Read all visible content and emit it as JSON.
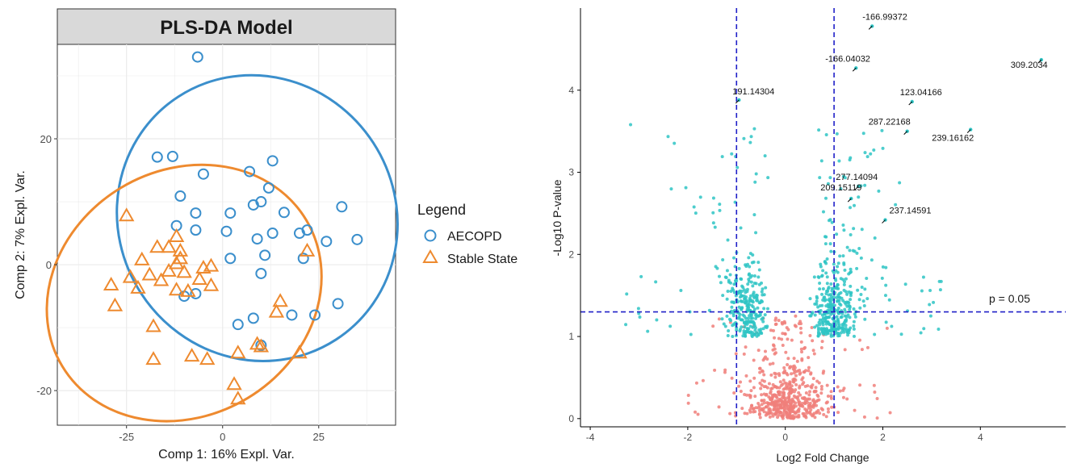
{
  "colors": {
    "aecopd": "#3b8fcc",
    "stable": "#ee8a2f",
    "panel_bg": "#ffffff",
    "grid": "#ebebeb",
    "strip_bg": "#d9d9d9",
    "sig": "#2ec4c4",
    "nonsig": "#f07f7a",
    "cutoff": "#2020c8",
    "text": "#1a1a1a",
    "axis_text": "#4d4d4d"
  },
  "chart_data": [
    {
      "type": "scatter",
      "title": "PLS-DA Model",
      "xlabel": "Comp 1: 16% Expl. Var.",
      "ylabel": "Comp 2: 7% Expl. Var.",
      "xlim": [
        -43,
        45
      ],
      "ylim": [
        -25.5,
        35
      ],
      "xticks": [
        -25,
        0,
        25
      ],
      "yticks": [
        -20,
        0,
        20
      ],
      "grid": true,
      "legend": {
        "title": "Legend",
        "position": "right",
        "entries": [
          "AECOPD",
          "Stable State"
        ]
      },
      "series": [
        {
          "name": "AECOPD",
          "marker": "circle",
          "color": "#3b8fcc",
          "points": [
            [
              -6.5,
              33
            ],
            [
              -17,
              17.1
            ],
            [
              -13,
              17.2
            ],
            [
              -5,
              14.4
            ],
            [
              7,
              14.8
            ],
            [
              13,
              16.5
            ],
            [
              -11,
              10.9
            ],
            [
              8,
              9.5
            ],
            [
              10,
              10
            ],
            [
              12,
              12.2
            ],
            [
              16,
              8.3
            ],
            [
              31,
              9.2
            ],
            [
              -7,
              8.2
            ],
            [
              2,
              8.2
            ],
            [
              -12,
              6.2
            ],
            [
              -7,
              5.5
            ],
            [
              1,
              5.3
            ],
            [
              9,
              4.1
            ],
            [
              13,
              5
            ],
            [
              20,
              5
            ],
            [
              22,
              5.5
            ],
            [
              27,
              3.7
            ],
            [
              35,
              4
            ],
            [
              11,
              1.5
            ],
            [
              21,
              1
            ],
            [
              2,
              1
            ],
            [
              10,
              -1.4
            ],
            [
              30,
              -6.2
            ],
            [
              -10,
              -5
            ],
            [
              -7,
              -4.6
            ],
            [
              8,
              -8.5
            ],
            [
              18,
              -8
            ],
            [
              24,
              -8
            ],
            [
              4,
              -9.5
            ],
            [
              10,
              -12.8
            ]
          ]
        },
        {
          "name": "Stable State",
          "marker": "triangle",
          "color": "#ee8a2f",
          "points": [
            [
              -25,
              7.8
            ],
            [
              -12,
              4.5
            ],
            [
              -17,
              2.8
            ],
            [
              -14,
              2.8
            ],
            [
              -11,
              2.2
            ],
            [
              -21,
              0.8
            ],
            [
              -11,
              1
            ],
            [
              -12,
              0.2
            ],
            [
              -10,
              -1.2
            ],
            [
              -14,
              -1
            ],
            [
              -5,
              -0.5
            ],
            [
              -3,
              -0.2
            ],
            [
              -24,
              -2
            ],
            [
              -19,
              -1.6
            ],
            [
              -16,
              -2.5
            ],
            [
              -12,
              -4
            ],
            [
              -6,
              -2.3
            ],
            [
              -3,
              -3.3
            ],
            [
              -29,
              -3.2
            ],
            [
              -22,
              -3.7
            ],
            [
              -9,
              -4.2
            ],
            [
              -28,
              -6.5
            ],
            [
              15,
              -5.8
            ],
            [
              14,
              -7.5
            ],
            [
              -18,
              -9.8
            ],
            [
              9,
              -12.6
            ],
            [
              10,
              -13
            ],
            [
              -18,
              -15
            ],
            [
              -8,
              -14.5
            ],
            [
              -4,
              -15
            ],
            [
              20,
              -14
            ],
            [
              4,
              -14
            ],
            [
              3,
              -19
            ],
            [
              22,
              2.2
            ],
            [
              4,
              -21.3
            ]
          ]
        }
      ],
      "ellipses": [
        {
          "series": "AECOPD",
          "center": [
            9,
            7.4
          ],
          "radii": [
            36,
            23
          ],
          "rotation_deg": -33
        },
        {
          "series": "Stable State",
          "center": [
            -10,
            -4.5
          ],
          "radii": [
            37,
            19.5
          ],
          "rotation_deg": -31
        }
      ]
    },
    {
      "type": "scatter",
      "title": "",
      "xlabel": "Log2 Fold Change",
      "ylabel": "-Log10 P-value",
      "xlim": [
        -4.2,
        5.75
      ],
      "ylim": [
        -0.1,
        5.0
      ],
      "xticks": [
        -4,
        -2,
        0,
        2,
        4
      ],
      "yticks": [
        0,
        1,
        2,
        3,
        4
      ],
      "grid": false,
      "cutoffs": {
        "x": [
          -1,
          1
        ],
        "y": 1.3
      },
      "threshold_label": "p = 0.05",
      "point_groups": [
        {
          "group": "significant",
          "color": "#2ec4c4",
          "count": 700,
          "p_min": 1.3
        },
        {
          "group": "not significant",
          "color": "#f07f7a",
          "count": 550,
          "p_max": 1.3
        }
      ],
      "labeled_points": [
        {
          "label": "-166.99372",
          "x": 1.78,
          "y": 4.78
        },
        {
          "label": "-166.04032",
          "x": 1.45,
          "y": 4.27
        },
        {
          "label": "191.14304",
          "x": -0.95,
          "y": 3.88
        },
        {
          "label": "123.04166",
          "x": 2.6,
          "y": 3.86
        },
        {
          "label": "309.2034",
          "x": 5.25,
          "y": 4.37
        },
        {
          "label": "287.22168",
          "x": 2.5,
          "y": 3.5
        },
        {
          "label": "239.16162",
          "x": 3.8,
          "y": 3.52
        },
        {
          "label": "277.14094",
          "x": 1.5,
          "y": 2.83
        },
        {
          "label": "209.15119",
          "x": 1.35,
          "y": 2.68
        },
        {
          "label": "237.14591",
          "x": 2.05,
          "y": 2.42
        }
      ]
    }
  ]
}
